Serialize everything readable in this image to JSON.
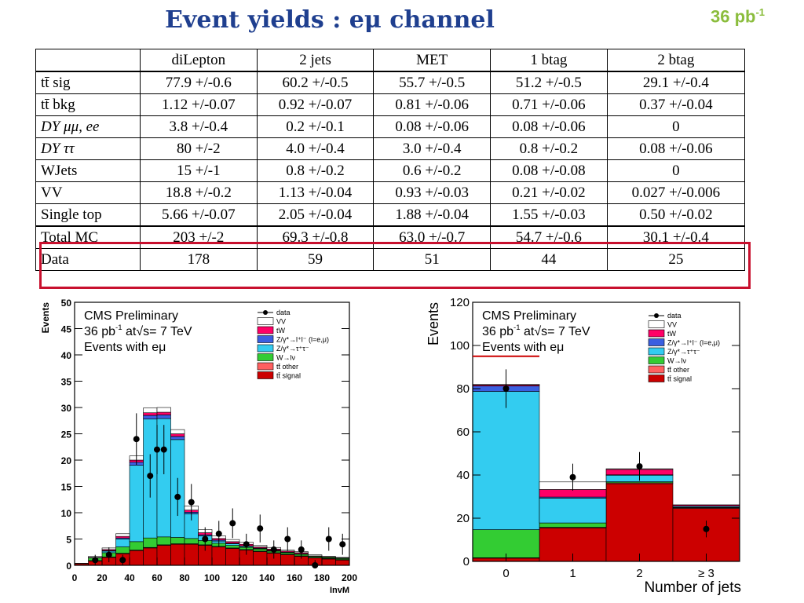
{
  "title": "Event yields : eμ  channel",
  "lumi": {
    "value": "36 pb",
    "exp": "-1"
  },
  "table": {
    "headers": [
      "",
      "diLepton",
      "2 jets",
      "MET",
      "1 btag",
      "2 btag"
    ],
    "rows": [
      {
        "label": "tt̄ sig",
        "cells": [
          "77.9 +/-0.6",
          "60.2 +/-0.5",
          "55.7 +/-0.5",
          "51.2 +/-0.5",
          "29.1 +/-0.4"
        ]
      },
      {
        "label": "tt̄ bkg",
        "cells": [
          "1.12 +/-0.07",
          "0.92 +/-0.07",
          "0.81 +/-0.06",
          "0.71 +/-0.06",
          "0.37 +/-0.04"
        ]
      },
      {
        "label": "DY μμ, ee",
        "cells": [
          "3.8 +/-0.4",
          "0.2 +/-0.1",
          "0.08 +/-0.06",
          "0.08 +/-0.06",
          "0"
        ]
      },
      {
        "label": "DY ττ",
        "cells": [
          "80 +/-2",
          "4.0 +/-0.4",
          "3.0 +/-0.4",
          "0.8 +/-0.2",
          "0.08 +/-0.06"
        ]
      },
      {
        "label": "WJets",
        "cells": [
          "15 +/-1",
          "0.8 +/-0.2",
          "0.6 +/-0.2",
          "0.08 +/-0.08",
          "0"
        ]
      },
      {
        "label": "VV",
        "cells": [
          "18.8 +/-0.2",
          "1.13 +/-0.04",
          "0.93 +/-0.03",
          "0.21 +/-0.02",
          "0.027 +/-0.006"
        ]
      },
      {
        "label": "Single top",
        "cells": [
          "5.66 +/-0.07",
          "2.05 +/-0.04",
          "1.88 +/-0.04",
          "1.55 +/-0.03",
          "0.50 +/-0.02"
        ]
      },
      {
        "label": "Total MC",
        "cells": [
          "203 +/-2",
          "69.3 +/-0.8",
          "63.0 +/-0.7",
          "54.7 +/-0.6",
          "30.1 +/-0.4"
        ]
      },
      {
        "label": "Data",
        "cells": [
          "178",
          "59",
          "51",
          "44",
          "25"
        ]
      }
    ]
  },
  "colors": {
    "title": "#1f3f8f",
    "lumi": "#8bbd3d",
    "highlight": "#c8102e",
    "vv": "#ffffff",
    "tw": "#ff0066",
    "dy_ll": "#3a5fe0",
    "dy_tautau": "#33ccf0",
    "wlnu": "#33cc33",
    "tt_other": "#ff6060",
    "tt_signal": "#cc0000"
  },
  "plot_text": {
    "cms": "CMS Preliminary",
    "lumi_prefix": "36 pb",
    "lumi_exp": "-1",
    "lumi_suffix": " at√s= 7 TeV",
    "selection": "Events with eμ",
    "legend": [
      "data",
      "VV",
      "tW",
      "Z/γ*→l⁺l⁻ (l=e,μ)",
      "Z/γ*→τ⁺τ⁻",
      "W→lν",
      "tt̄ other",
      "tt̄ signal"
    ]
  },
  "chart_data": [
    {
      "type": "bar",
      "title": "",
      "xlabel": "InvM",
      "ylabel": "Events",
      "xlim": [
        0,
        200
      ],
      "ylim": [
        0,
        50
      ],
      "x_ticks": [
        "0",
        "20",
        "40",
        "60",
        "80",
        "100",
        "120",
        "140",
        "160",
        "180",
        "200"
      ],
      "y_ticks": [
        "0",
        "5",
        "10",
        "15",
        "20",
        "25",
        "30",
        "35",
        "40",
        "45",
        "50"
      ],
      "bin_edges": [
        0,
        10,
        20,
        30,
        40,
        50,
        60,
        70,
        80,
        90,
        100,
        110,
        120,
        130,
        140,
        150,
        160,
        170,
        180,
        190,
        200
      ],
      "series": [
        {
          "name": "tt̄ signal",
          "color": "#cc0000",
          "values": [
            0.3,
            0.8,
            1.5,
            2.2,
            2.8,
            3.3,
            3.8,
            4.0,
            4.0,
            3.8,
            3.5,
            3.2,
            2.9,
            2.6,
            2.3,
            2.0,
            1.7,
            1.4,
            1.2,
            1.0
          ]
        },
        {
          "name": "tt̄ other",
          "color": "#ff6060",
          "values": [
            0.1,
            0.1,
            0.1,
            0.1,
            0.1,
            0.1,
            0.1,
            0.1,
            0.1,
            0.1,
            0.1,
            0.1,
            0.1,
            0.1,
            0.1,
            0.1,
            0.1,
            0.1,
            0.1,
            0.1
          ]
        },
        {
          "name": "W→lν",
          "color": "#33cc33",
          "values": [
            0,
            0.5,
            0.8,
            1.2,
            1.6,
            1.8,
            1.5,
            1.2,
            1.0,
            0.8,
            0.6,
            0.5,
            0.4,
            0.4,
            0.3,
            0.3,
            0.3,
            0.2,
            0.2,
            0.2
          ]
        },
        {
          "name": "Z/γ*→τ⁺τ⁻",
          "color": "#33ccf0",
          "values": [
            0,
            0,
            0.3,
            1.5,
            14.5,
            22.6,
            22.5,
            18.6,
            4.7,
            0.9,
            0.4,
            0.3,
            0.2,
            0.1,
            0.1,
            0.1,
            0.1,
            0,
            0,
            0
          ]
        },
        {
          "name": "Z/γ*→l⁺l⁻ (l=e,μ)",
          "color": "#3a5fe0",
          "values": [
            0,
            0,
            0.1,
            0.2,
            0.6,
            0.7,
            0.7,
            0.6,
            0.3,
            0.2,
            0.2,
            0.1,
            0.1,
            0.1,
            0.1,
            0,
            0,
            0,
            0,
            0
          ]
        },
        {
          "name": "tW",
          "color": "#ff0066",
          "values": [
            0,
            0.1,
            0.2,
            0.3,
            0.4,
            0.5,
            0.5,
            0.5,
            0.4,
            0.4,
            0.3,
            0.3,
            0.3,
            0.2,
            0.2,
            0.2,
            0.2,
            0.1,
            0.1,
            0.1
          ]
        },
        {
          "name": "VV",
          "color": "#ffffff",
          "values": [
            0,
            0.2,
            0.3,
            0.5,
            0.8,
            0.9,
            0.9,
            0.8,
            0.8,
            0.6,
            0.5,
            0.4,
            0.4,
            0.3,
            0.3,
            0.2,
            0.2,
            0.2,
            0.1,
            0.1
          ]
        }
      ],
      "data_points": {
        "x": [
          15,
          25,
          35,
          45,
          55,
          60,
          65,
          75,
          85,
          95,
          105,
          115,
          125,
          135,
          145,
          155,
          165,
          175,
          185,
          195
        ],
        "y": [
          1,
          2,
          1,
          24,
          17,
          22,
          22,
          13,
          12,
          5,
          6,
          8,
          4,
          7,
          3,
          5,
          3,
          0,
          5,
          4
        ]
      }
    },
    {
      "type": "bar",
      "title": "",
      "xlabel": "Number of jets",
      "ylabel": "Events",
      "ylim": [
        0,
        120
      ],
      "categories": [
        "0",
        "1",
        "2",
        "≥ 3"
      ],
      "y_ticks": [
        "0",
        "20",
        "40",
        "60",
        "80",
        "100",
        "120"
      ],
      "series": [
        {
          "name": "tt̄ signal",
          "color": "#cc0000",
          "values": [
            1.5,
            15.5,
            36,
            24.5
          ]
        },
        {
          "name": "tt̄ other",
          "color": "#ff6060",
          "values": [
            0.2,
            0.3,
            0.4,
            0.3
          ]
        },
        {
          "name": "W→lν",
          "color": "#33cc33",
          "values": [
            13,
            2,
            0.5,
            0.2
          ]
        },
        {
          "name": "Z/γ*→τ⁺τ⁻",
          "color": "#33ccf0",
          "values": [
            64,
            11.5,
            3,
            0.5
          ]
        },
        {
          "name": "Z/γ*→l⁺l⁻ (l=e,μ)",
          "color": "#3a5fe0",
          "values": [
            2.5,
            0.5,
            0.2,
            0.1
          ]
        },
        {
          "name": "tW",
          "color": "#ff0066",
          "values": [
            0.5,
            3.5,
            2.5,
            0.5
          ]
        },
        {
          "name": "VV",
          "color": "#ffffff",
          "values": [
            0.3,
            3.5,
            0.3,
            0.1
          ]
        }
      ],
      "data_points": {
        "x": [
          "0",
          "1",
          "2",
          "≥ 3"
        ],
        "y": [
          80,
          39,
          44,
          15
        ]
      }
    }
  ]
}
